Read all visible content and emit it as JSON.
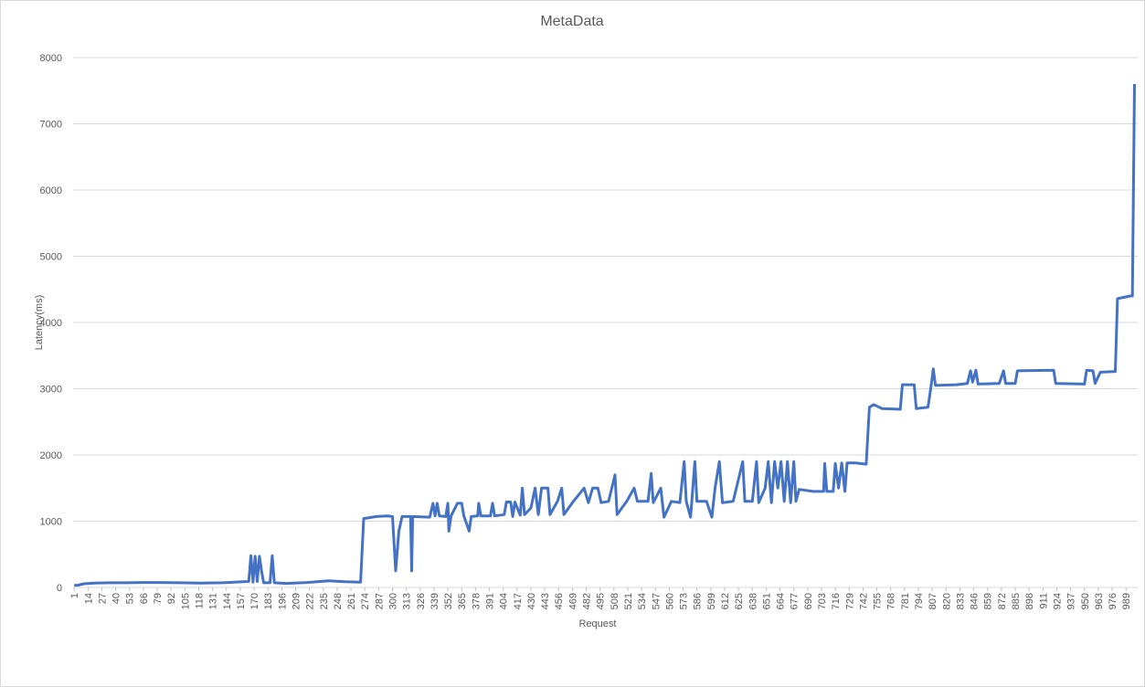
{
  "chart_data": {
    "type": "line",
    "title": "MetaData",
    "x_label": "Request",
    "y_label": "Latency(ms)",
    "xlim": [
      0,
      1000
    ],
    "ylim": [
      0,
      8000
    ],
    "xticks": [
      1,
      14,
      27,
      40,
      53,
      66,
      79,
      92,
      105,
      118,
      131,
      144,
      157,
      170,
      183,
      196,
      209,
      222,
      235,
      248,
      261,
      274,
      287,
      300,
      313,
      326,
      339,
      352,
      365,
      378,
      391,
      404,
      417,
      430,
      443,
      456,
      469,
      482,
      495,
      508,
      521,
      534,
      547,
      560,
      573,
      586,
      599,
      612,
      625,
      638,
      651,
      664,
      677,
      690,
      703,
      716,
      729,
      742,
      755,
      768,
      781,
      794,
      807,
      820,
      833,
      846,
      859,
      872,
      885,
      898,
      911,
      924,
      937,
      950,
      963,
      976,
      989
    ],
    "yticks": [
      0,
      1000,
      2000,
      3000,
      4000,
      5000,
      6000,
      7000,
      8000
    ],
    "grid": true,
    "x": [
      1,
      5,
      10,
      20,
      35,
      50,
      65,
      80,
      100,
      120,
      140,
      160,
      165,
      167,
      169,
      171,
      173,
      175,
      177,
      179,
      185,
      187,
      189,
      200,
      220,
      240,
      255,
      270,
      273,
      285,
      295,
      300,
      303,
      306,
      309,
      317,
      318,
      319,
      335,
      338,
      340,
      342,
      344,
      350,
      352,
      353,
      355,
      361,
      365,
      367,
      372,
      374,
      380,
      381,
      383,
      392,
      394,
      396,
      405,
      407,
      411,
      413,
      415,
      420,
      422,
      424,
      430,
      434,
      437,
      440,
      446,
      448,
      455,
      459,
      461,
      470,
      480,
      484,
      488,
      493,
      496,
      503,
      509,
      511,
      520,
      527,
      530,
      540,
      543,
      545,
      552,
      555,
      562,
      570,
      574,
      576,
      580,
      584,
      586,
      595,
      600,
      603,
      607,
      610,
      620,
      629,
      631,
      638,
      642,
      644,
      650,
      653,
      656,
      659,
      662,
      665,
      668,
      671,
      674,
      677,
      679,
      682,
      695,
      705,
      706,
      708,
      714,
      716,
      719,
      722,
      725,
      727,
      735,
      745,
      748,
      752,
      760,
      777,
      779,
      790,
      792,
      803,
      806,
      808,
      810,
      830,
      840,
      843,
      845,
      848,
      850,
      870,
      874,
      876,
      885,
      887,
      921,
      923,
      950,
      952,
      958,
      960,
      965,
      979,
      981,
      993,
      995,
      997
    ],
    "series": [
      {
        "name": "Latency",
        "color": "#4472c4",
        "values": [
          30,
          35,
          55,
          65,
          70,
          70,
          75,
          75,
          70,
          65,
          70,
          85,
          90,
          480,
          80,
          470,
          90,
          470,
          250,
          70,
          70,
          480,
          70,
          60,
          75,
          100,
          85,
          80,
          1040,
          1070,
          1080,
          1070,
          250,
          850,
          1070,
          1070,
          250,
          1070,
          1060,
          1270,
          1080,
          1270,
          1080,
          1070,
          1270,
          850,
          1080,
          1270,
          1270,
          1080,
          850,
          1070,
          1080,
          1270,
          1080,
          1080,
          1270,
          1080,
          1100,
          1290,
          1290,
          1070,
          1290,
          1090,
          1500,
          1100,
          1200,
          1500,
          1100,
          1500,
          1500,
          1100,
          1300,
          1500,
          1100,
          1300,
          1500,
          1280,
          1500,
          1500,
          1280,
          1300,
          1700,
          1100,
          1300,
          1500,
          1300,
          1300,
          1720,
          1280,
          1500,
          1060,
          1300,
          1280,
          1900,
          1300,
          1060,
          1900,
          1300,
          1300,
          1060,
          1500,
          1900,
          1280,
          1300,
          1900,
          1300,
          1300,
          1900,
          1280,
          1500,
          1900,
          1280,
          1900,
          1500,
          1900,
          1300,
          1900,
          1280,
          1900,
          1300,
          1480,
          1450,
          1450,
          1870,
          1450,
          1450,
          1870,
          1500,
          1880,
          1450,
          1880,
          1880,
          1860,
          2720,
          2760,
          2700,
          2690,
          3060,
          3060,
          2700,
          2720,
          3050,
          3300,
          3050,
          3060,
          3080,
          3270,
          3100,
          3280,
          3070,
          3080,
          3270,
          3080,
          3080,
          3270,
          3280,
          3080,
          3070,
          3280,
          3270,
          3080,
          3250,
          3260,
          4360,
          4400,
          4400,
          7600
        ]
      }
    ]
  }
}
